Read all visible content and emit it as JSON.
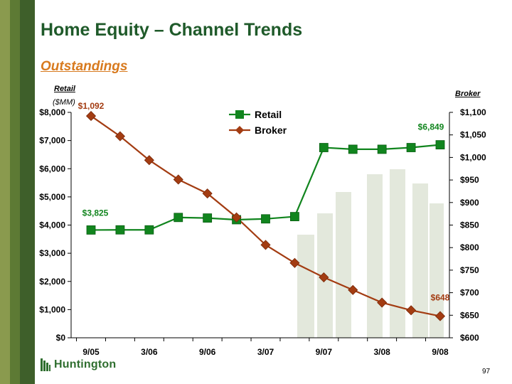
{
  "page": {
    "title": "Home Equity – Channel  Trends",
    "subtitle": "Outstandings",
    "left_axis_head": "Retail",
    "left_axis_unit": "($MM)",
    "right_axis_head": "Broker",
    "logo_text": "Huntington",
    "page_number": "97"
  },
  "colors": {
    "retail": "#11851e",
    "broker": "#a33c12",
    "title": "#1f5a2a",
    "subtitle": "#d87a1e"
  },
  "chart_data": {
    "type": "line",
    "x": [
      "9/05",
      "12/05",
      "3/06",
      "6/06",
      "9/06",
      "12/06",
      "3/07",
      "6/07",
      "9/07",
      "12/07",
      "3/08",
      "6/08",
      "9/08"
    ],
    "x_tick_labels": [
      "9/05",
      "3/06",
      "9/06",
      "3/07",
      "9/07",
      "3/08",
      "9/08"
    ],
    "series": [
      {
        "name": "Retail",
        "axis": "left",
        "values": [
          3825,
          3830,
          3830,
          4270,
          4250,
          4190,
          4220,
          4300,
          6750,
          6690,
          6690,
          6750,
          6849
        ]
      },
      {
        "name": "Broker",
        "axis": "right",
        "values": [
          1092,
          1047,
          994,
          951,
          920,
          867,
          806,
          766,
          734,
          706,
          678,
          661,
          648
        ]
      }
    ],
    "y_left": {
      "lim": [
        0,
        8000
      ],
      "ticks": [
        0,
        1000,
        2000,
        3000,
        4000,
        5000,
        6000,
        7000,
        8000
      ],
      "tick_labels": [
        "$0",
        "$1,000",
        "$2,000",
        "$3,000",
        "$4,000",
        "$5,000",
        "$6,000",
        "$7,000",
        "$8,000"
      ]
    },
    "y_right": {
      "lim": [
        600,
        1100
      ],
      "ticks": [
        600,
        650,
        700,
        750,
        800,
        850,
        900,
        950,
        1000,
        1050,
        1100
      ],
      "tick_labels": [
        "$600",
        "$650",
        "$700",
        "$750",
        "$800",
        "$850",
        "$900",
        "$950",
        "$1,000",
        "$1,050",
        "$1,100"
      ]
    },
    "annotations": [
      {
        "text": "$1,092",
        "series": "Broker",
        "index": 0
      },
      {
        "text": "$648",
        "series": "Broker",
        "index": 12
      },
      {
        "text": "$3,825",
        "series": "Retail",
        "index": 0
      },
      {
        "text": "$6,849",
        "series": "Retail",
        "index": 12
      }
    ],
    "legend": {
      "position": "top-center",
      "entries": [
        "Retail",
        "Broker"
      ]
    },
    "grid": false
  }
}
